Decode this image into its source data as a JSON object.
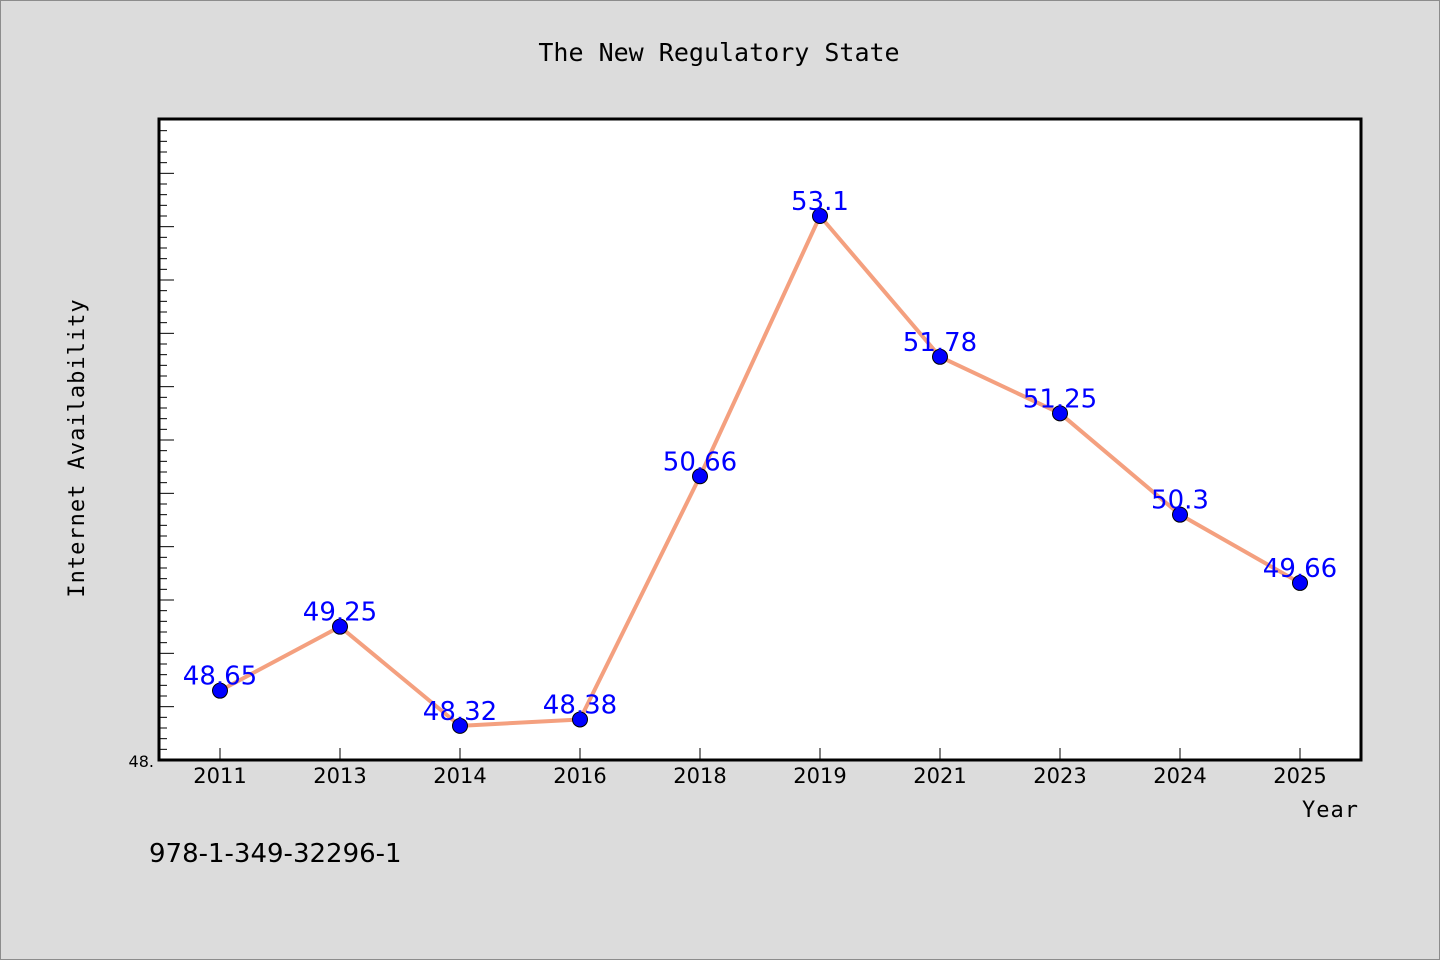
{
  "chart_data": {
    "type": "line",
    "title": "The New Regulatory State",
    "xlabel": "Year",
    "ylabel": "Internet Availability",
    "categories": [
      "2011",
      "2013",
      "2014",
      "2016",
      "2018",
      "2019",
      "2021",
      "2023",
      "2024",
      "2025"
    ],
    "series": [
      {
        "values": [
          48.65,
          49.25,
          48.32,
          48.38,
          50.66,
          53.1,
          51.78,
          51.25,
          50.3,
          49.66
        ],
        "labels": [
          "48.65",
          "49.25",
          "48.32",
          "48.38",
          "50.66",
          "53.1",
          "51.78",
          "51.25",
          "50.3",
          "49.66"
        ]
      }
    ],
    "y_tick_labels": [
      "48."
    ],
    "ylim": [
      48.0,
      54.0
    ],
    "grid": false,
    "line_color": "#f4a07f",
    "marker_color": "#0000ff",
    "label_color": "#0000ff"
  },
  "footer": {
    "code": "978-1-349-32296-1"
  }
}
